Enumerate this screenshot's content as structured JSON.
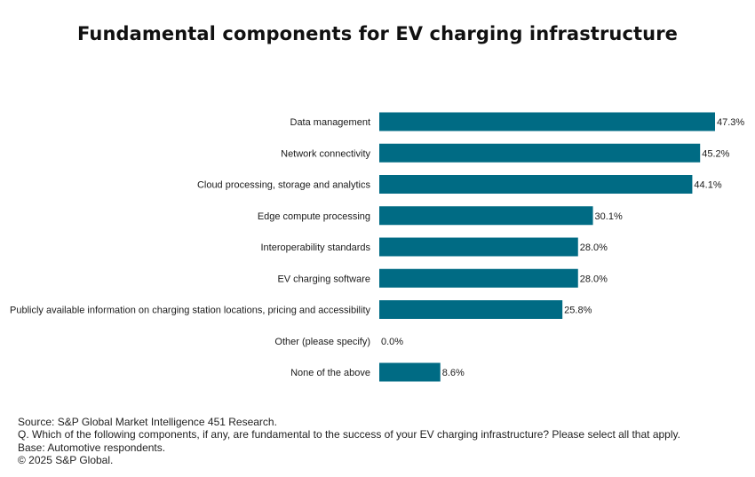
{
  "title": "Fundamental components for EV charging infrastructure",
  "chart_data": {
    "type": "bar",
    "orientation": "horizontal",
    "categories": [
      "Data management",
      "Network connectivity",
      "Cloud processing, storage and analytics",
      "Edge compute processing",
      "Interoperability standards",
      "EV charging software",
      "Publicly available information on charging station locations, pricing and accessibility",
      "Other (please specify)",
      "None of the above"
    ],
    "values": [
      47.3,
      45.2,
      44.1,
      30.1,
      28.0,
      28.0,
      25.8,
      0.0,
      8.6
    ],
    "data_labels": [
      "47.3%",
      "45.2%",
      "44.1%",
      "30.1%",
      "28.0%",
      "28.0%",
      "25.8%",
      "0.0%",
      "8.6%"
    ],
    "xlim": [
      0,
      47.3
    ],
    "bar_color": "#006B84",
    "grid": false,
    "legend": "none"
  },
  "footer": {
    "source": "Source: S&P Global Market Intelligence 451 Research.",
    "question": "Q. Which of the following components, if any, are fundamental to the success of your EV charging infrastructure? Please select all that apply.",
    "base": "Base: Automotive respondents.",
    "copyright": "© 2025 S&P Global."
  }
}
